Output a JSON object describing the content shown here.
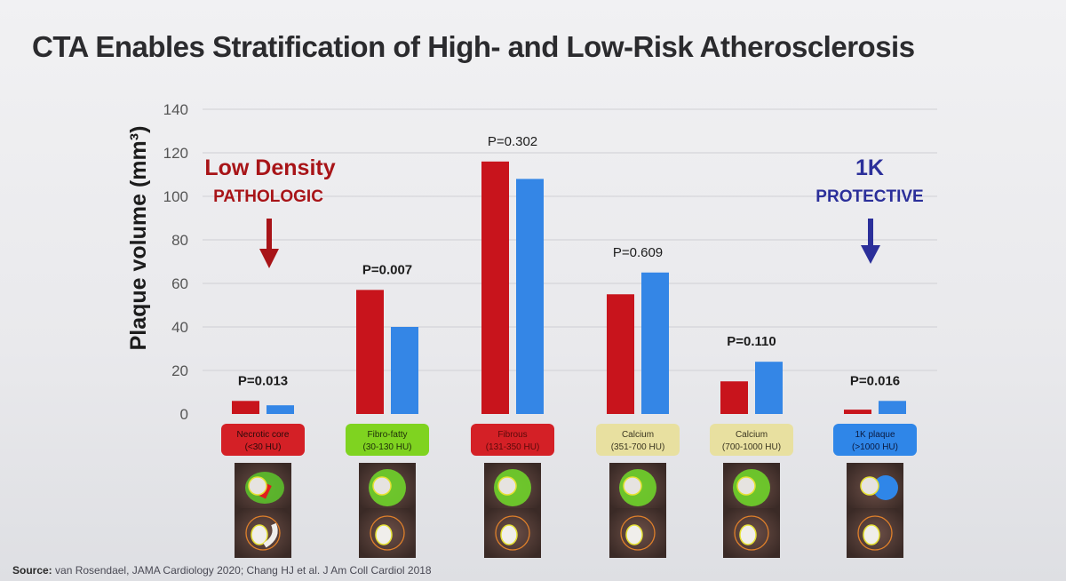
{
  "slide": {
    "title": "CTA Enables Stratification of High- and Low-Risk Atherosclerosis",
    "source_label": "Source:",
    "source_text": "van Rosendael, JAMA Cardiology 2020; Chang HJ et al. J Am Coll Cardiol 2018"
  },
  "annotations": {
    "low_density_title": "Low Density",
    "low_density_subtitle": "PATHOLOGIC",
    "one_k_title": "1K",
    "one_k_subtitle": "PROTECTIVE"
  },
  "colors": {
    "series_red": "#c8141c",
    "series_blue": "#3486e6",
    "annotation_red": "#a81418",
    "annotation_blue": "#2b2f9a",
    "grid": "#cfcfd4"
  },
  "chart_data": {
    "type": "bar",
    "ylabel": "Plaque volume (mm³)",
    "ylim": [
      0,
      140
    ],
    "yticks": [
      0,
      20,
      40,
      60,
      80,
      100,
      120,
      140
    ],
    "grid": true,
    "categories": [
      "Necrotic core (<30 HU)",
      "Fibro-fatty (30-130 HU)",
      "Fibrous (131-350 HU)",
      "Calcium (351-700 HU)",
      "Calcium (700-1000 HU)",
      "1K plaque (>1000 HU)"
    ],
    "category_lines": [
      [
        "Necrotic core",
        "(<30 HU)"
      ],
      [
        "Fibro-fatty",
        "(30-130 HU)"
      ],
      [
        "Fibrous",
        "(131-350 HU)"
      ],
      [
        "Calcium",
        "(351-700 HU)"
      ],
      [
        "Calcium",
        "(700-1000 HU)"
      ],
      [
        "1K plaque",
        "(>1000 HU)"
      ]
    ],
    "category_box_colors": [
      "#d42026",
      "#7fd320",
      "#d42026",
      "#e8e0a0",
      "#e8e0a0",
      "#2f86e8"
    ],
    "category_text_colors": [
      "#2a0a0a",
      "#1e2e08",
      "#5a0a0a",
      "#3a3520",
      "#3a3520",
      "#0a1a40"
    ],
    "p_values": [
      "P=0.013",
      "P=0.007",
      "P=0.302",
      "P=0.609",
      "P=0.110",
      "P=0.016"
    ],
    "p_bold": [
      true,
      true,
      false,
      false,
      true,
      true
    ],
    "series": [
      {
        "color": "#c8141c",
        "values": [
          6,
          57,
          116,
          55,
          15,
          2
        ]
      },
      {
        "color": "#3486e6",
        "values": [
          4,
          40,
          108,
          65,
          24,
          6
        ]
      }
    ]
  }
}
